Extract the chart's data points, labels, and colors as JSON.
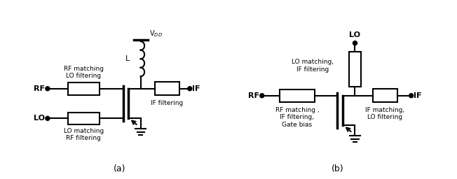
{
  "fig_width": 6.52,
  "fig_height": 2.56,
  "dpi": 100,
  "background": "#ffffff",
  "line_color": "#000000",
  "lw": 1.5,
  "circuit_a": {
    "label": "(a)",
    "vdd_text": "V$_{DD}$",
    "L_text": "L",
    "rf_label": "RF",
    "lo_label": "LO",
    "if_label": "IF",
    "rf_match_text": "RF matching\nLO filtering",
    "lo_match_text": "LO matching\nRF filtering",
    "if_filt_text": "IF filtering"
  },
  "circuit_b": {
    "label": "(b)",
    "lo_label": "LO",
    "rf_label": "RF",
    "if_label": "IF",
    "lo_match_text": "LO matching,\nIF filtering",
    "rf_match_text": "RF matching ,\nIF filtering,\nGate bias",
    "if_match_text": "IF matching,\nLO filtering"
  }
}
